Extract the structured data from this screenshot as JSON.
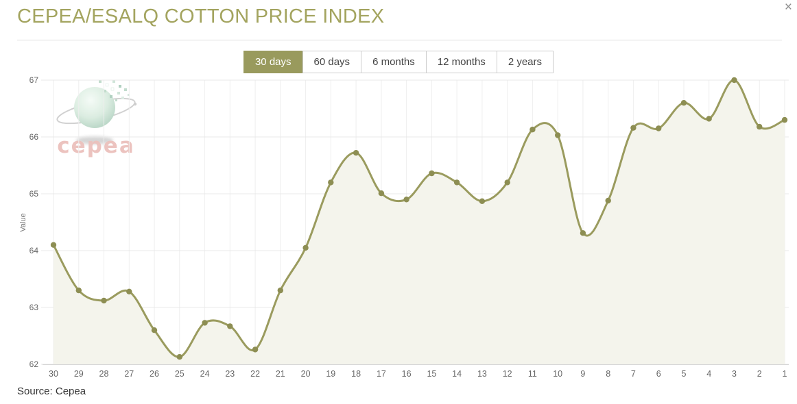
{
  "window": {
    "close_glyph": "×"
  },
  "header": {
    "title": "CEPEA/ESALQ COTTON PRICE INDEX"
  },
  "tabs": [
    {
      "label": "30 days",
      "active": true
    },
    {
      "label": "60 days",
      "active": false
    },
    {
      "label": "6 months",
      "active": false
    },
    {
      "label": "12 months",
      "active": false
    },
    {
      "label": "2 years",
      "active": false
    }
  ],
  "active_tab": "30 days",
  "chart_data": {
    "type": "area",
    "title": "",
    "xlabel": "",
    "ylabel": "Value",
    "x": [
      30,
      29,
      28,
      27,
      26,
      25,
      24,
      23,
      22,
      21,
      20,
      19,
      18,
      17,
      16,
      15,
      14,
      13,
      12,
      11,
      10,
      9,
      8,
      7,
      6,
      5,
      4,
      3,
      2,
      1
    ],
    "values": [
      64.1,
      63.3,
      63.12,
      63.28,
      62.6,
      62.13,
      62.73,
      62.67,
      62.26,
      63.3,
      64.05,
      65.2,
      65.72,
      65.01,
      64.9,
      65.36,
      65.2,
      64.87,
      65.2,
      66.13,
      66.03,
      64.31,
      64.88,
      66.16,
      66.15,
      66.6,
      66.32,
      67.0,
      66.18,
      66.3
    ],
    "ylim": [
      62,
      67
    ],
    "yticks": [
      62,
      63,
      64,
      65,
      66,
      67
    ],
    "grid": true,
    "legend": false,
    "marker": "circle"
  },
  "colors": {
    "accent": "#999a5d",
    "line": "#9a9b5e",
    "marker_fill": "#8d8e53",
    "area_fill": "#f4f4ec",
    "grid_h": "#e8e8e8",
    "grid_v": "#eeeeee",
    "axis_line": "#d6d6d6",
    "tick_text": "#666666",
    "title_text": "#a3a45f",
    "watermark_text": "#e9bab5"
  },
  "watermark": {
    "brand": "cepea"
  },
  "footer": {
    "source": "Source: Cepea"
  }
}
